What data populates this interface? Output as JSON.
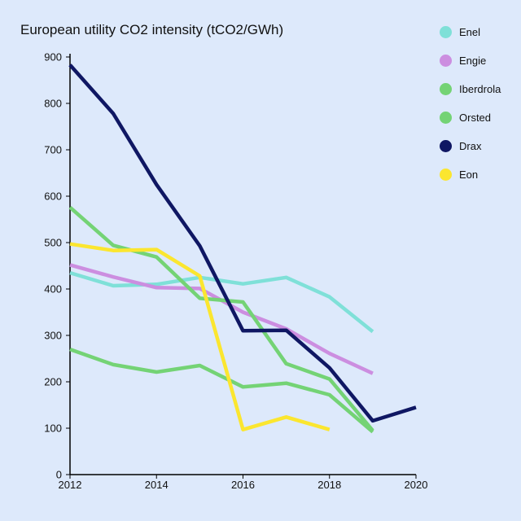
{
  "chart_data": {
    "type": "line",
    "title": "European utility CO2 intensity (tCO2/GWh)",
    "xlabel": "",
    "ylabel": "",
    "xlim": [
      2012,
      2020
    ],
    "ylim": [
      0,
      900
    ],
    "x_ticks": [
      2012,
      2014,
      2016,
      2018,
      2020
    ],
    "y_ticks": [
      0,
      100,
      200,
      300,
      400,
      500,
      600,
      700,
      800,
      900
    ],
    "grid": false,
    "legend_position": "right",
    "series": [
      {
        "name": "Enel",
        "color": "#7fe0d8",
        "x": [
          2012,
          2013,
          2014,
          2015,
          2016,
          2017,
          2018,
          2019
        ],
        "y": [
          435,
          407,
          410,
          425,
          411,
          425,
          383,
          308
        ]
      },
      {
        "name": "Engie",
        "color": "#cc8ee0",
        "x": [
          2012,
          2013,
          2014,
          2015,
          2016,
          2017,
          2018,
          2019
        ],
        "y": [
          452,
          426,
          403,
          401,
          350,
          314,
          261,
          218
        ]
      },
      {
        "name": "Iberdrola",
        "color": "#74d375",
        "x": [
          2012,
          2013,
          2014,
          2015,
          2016,
          2017,
          2018,
          2019
        ],
        "y": [
          270,
          237,
          221,
          235,
          189,
          197,
          172,
          92
        ]
      },
      {
        "name": "Orsted",
        "color": "#74d375",
        "x": [
          2012,
          2013,
          2014,
          2015,
          2016,
          2017,
          2018,
          2019
        ],
        "y": [
          576,
          494,
          469,
          380,
          372,
          239,
          206,
          95
        ]
      },
      {
        "name": "Drax",
        "color": "#0f1763",
        "x": [
          2012,
          2013,
          2014,
          2015,
          2016,
          2017,
          2018,
          2019,
          2020
        ],
        "y": [
          883,
          778,
          625,
          493,
          310,
          311,
          230,
          116,
          145
        ]
      },
      {
        "name": "Eon",
        "color": "#fbe62f",
        "x": [
          2012,
          2013,
          2014,
          2015,
          2016,
          2017,
          2018
        ],
        "y": [
          497,
          483,
          485,
          428,
          97,
          124,
          97
        ]
      }
    ]
  }
}
